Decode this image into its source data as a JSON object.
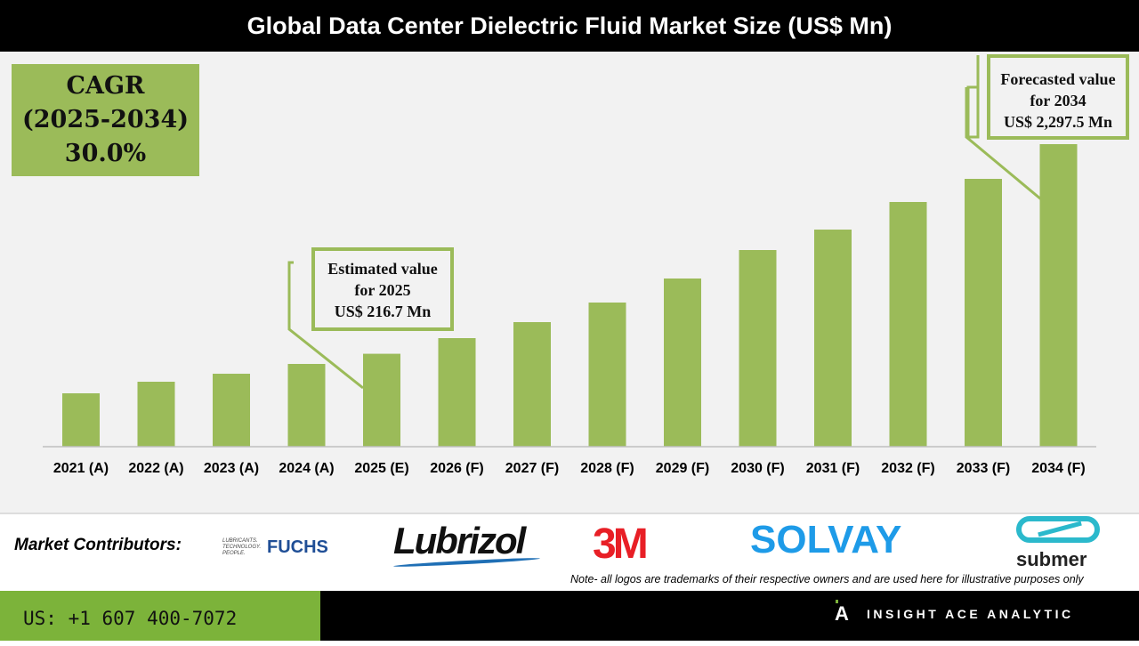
{
  "chart_data": {
    "type": "bar",
    "title": "Global Data Center Dielectric Fluid Market Size (US$ Mn)",
    "categories": [
      "2021 (A)",
      "2022 (A)",
      "2023 (A)",
      "2024 (A)",
      "2025 (E)",
      "2026 (F)",
      "2027 (F)",
      "2028 (F)",
      "2029 (F)",
      "2030 (F)",
      "2031 (F)",
      "2032 (F)",
      "2033 (F)",
      "2034 (F)"
    ],
    "values": [
      71.5,
      105.9,
      133.6,
      171.9,
      216.7,
      295.8,
      389.5,
      521.6,
      710.0,
      970.7,
      1183.0,
      1503.0,
      1800.6,
      2297.5
    ],
    "xlabel": "",
    "ylabel": "",
    "y_axis_visible": false,
    "y_scale": "sqrt",
    "grid": false,
    "bar_color": "#9bbb59"
  },
  "cagr": {
    "line1": "CAGR",
    "line2": "(2025-2034)",
    "line3": "30.0%"
  },
  "callouts": {
    "estimated": {
      "line1": "Estimated value",
      "line2": "for 2025",
      "line3": "US$ 216.7 Mn"
    },
    "forecasted": {
      "line1": "Forecasted value",
      "line2": "for 2034",
      "line3": "US$ 2,297.5 Mn"
    }
  },
  "contributors": {
    "label": "Market Contributors:",
    "logos": [
      "LUBRICANTS. TECHNOLOGY. PEOPLE. FUCHS",
      "Lubrizol",
      "3M",
      "SOLVAY",
      "submer"
    ],
    "note": "Note- all logos are trademarks of their respective owners and are used here for illustrative purposes only"
  },
  "footer": {
    "phone": "US: +1 607 400-7072",
    "brand": "INSIGHT ACE ANALYTIC"
  }
}
